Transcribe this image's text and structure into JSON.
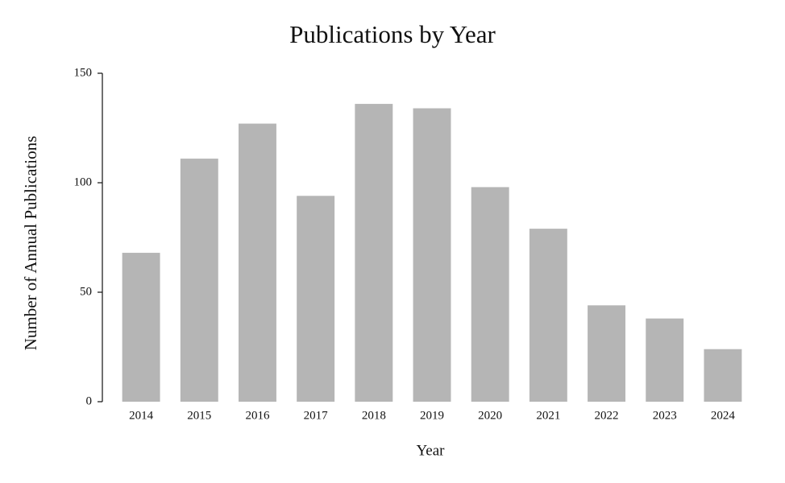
{
  "chart_data": {
    "type": "bar",
    "title": "Publications by Year",
    "x_label": "Year",
    "y_label": "Number of Annual Publications",
    "categories": [
      "2014",
      "2015",
      "2016",
      "2017",
      "2018",
      "2019",
      "2020",
      "2021",
      "2022",
      "2023",
      "2024"
    ],
    "values": [
      68,
      111,
      127,
      94,
      136,
      134,
      98,
      79,
      44,
      38,
      24
    ],
    "color": "#b5b5b5",
    "ylim": [
      0,
      150
    ],
    "yticks": [
      0,
      50,
      100,
      150
    ],
    "grid": false
  }
}
